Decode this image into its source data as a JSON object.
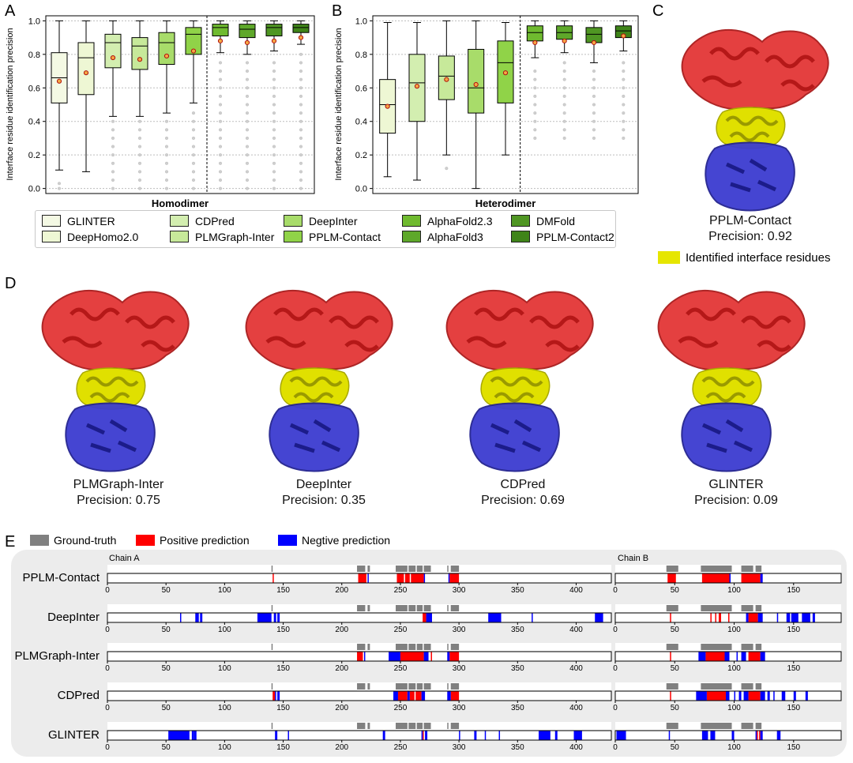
{
  "panel_letters": [
    "A",
    "B",
    "C",
    "D",
    "E"
  ],
  "colors": {
    "GLINTER": "#f4f9e4",
    "DeepHomo2.0": "#eef7d4",
    "CDPred": "#d3eeb0",
    "PLMGraph-Inter": "#c7e99a",
    "DeepInter": "#a8dc6a",
    "PPLM-Contact": "#90d348",
    "AlphaFold2.3": "#6fba2f",
    "AlphaFold3": "#5ea82a",
    "DMFold": "#4f9623",
    "PPLM-Contact2": "#3f8419",
    "ground_truth": "#808080",
    "positive": "#ff0000",
    "negative": "#0000ff",
    "chain_a": "#d42424",
    "chain_b": "#3535c8",
    "interface": "#e6e600"
  },
  "chart_data": [
    {
      "id": "A",
      "type": "box",
      "title": "",
      "xlabel": "Homodimer",
      "ylabel": "Interface residue identification precision",
      "ylim": [
        -0.03,
        1.03
      ],
      "yticks": [
        "0.0",
        "0.2",
        "0.4",
        "0.6",
        "0.8",
        "1.0"
      ],
      "grid": "dotted horizontal",
      "separator_after": 6,
      "boxes": [
        {
          "method": "GLINTER",
          "whislo": 0.11,
          "q1": 0.51,
          "med": 0.66,
          "q3": 0.81,
          "whishi": 1.0,
          "mean": 0.64,
          "fliers": [
            0.0,
            0.03
          ]
        },
        {
          "method": "DeepHomo2.0",
          "whislo": 0.1,
          "q1": 0.56,
          "med": 0.78,
          "q3": 0.87,
          "whishi": 1.0,
          "mean": 0.69,
          "fliers": []
        },
        {
          "method": "CDPred",
          "whislo": 0.43,
          "q1": 0.72,
          "med": 0.87,
          "q3": 0.92,
          "whishi": 1.0,
          "mean": 0.78,
          "fliers": [
            0.0,
            0.05,
            0.1,
            0.15,
            0.2,
            0.25,
            0.3,
            0.35,
            0.4
          ]
        },
        {
          "method": "PLMGraph-Inter",
          "whislo": 0.43,
          "q1": 0.71,
          "med": 0.85,
          "q3": 0.9,
          "whishi": 1.0,
          "mean": 0.77,
          "fliers": [
            0.0,
            0.05,
            0.1,
            0.15,
            0.2,
            0.25,
            0.3,
            0.35,
            0.4
          ]
        },
        {
          "method": "DeepInter",
          "whislo": 0.45,
          "q1": 0.74,
          "med": 0.87,
          "q3": 0.93,
          "whishi": 1.0,
          "mean": 0.79,
          "fliers": [
            0.0,
            0.05,
            0.1,
            0.15,
            0.2,
            0.25,
            0.3,
            0.35,
            0.4
          ]
        },
        {
          "method": "PPLM-Contact",
          "whislo": 0.51,
          "q1": 0.8,
          "med": 0.92,
          "q3": 0.96,
          "whishi": 1.0,
          "mean": 0.82,
          "fliers": [
            0.0,
            0.05,
            0.1,
            0.15,
            0.2,
            0.25,
            0.3,
            0.35,
            0.4,
            0.45
          ]
        },
        {
          "method": "AlphaFold2.3",
          "whislo": 0.81,
          "q1": 0.91,
          "med": 0.96,
          "q3": 0.98,
          "whishi": 1.0,
          "mean": 0.88,
          "fliers": [
            0.0,
            0.05,
            0.1,
            0.15,
            0.2,
            0.25,
            0.3,
            0.35,
            0.4,
            0.45,
            0.5,
            0.55,
            0.6,
            0.65,
            0.7,
            0.75
          ]
        },
        {
          "method": "AlphaFold3",
          "whislo": 0.8,
          "q1": 0.9,
          "med": 0.95,
          "q3": 0.98,
          "whishi": 1.0,
          "mean": 0.87,
          "fliers": [
            0.0,
            0.05,
            0.1,
            0.15,
            0.2,
            0.25,
            0.3,
            0.35,
            0.4,
            0.45,
            0.5,
            0.55,
            0.6,
            0.65,
            0.7,
            0.75
          ]
        },
        {
          "method": "DMFold",
          "whislo": 0.82,
          "q1": 0.91,
          "med": 0.96,
          "q3": 0.98,
          "whishi": 1.0,
          "mean": 0.88,
          "fliers": [
            0.0,
            0.05,
            0.1,
            0.15,
            0.2,
            0.25,
            0.3,
            0.35,
            0.4,
            0.45,
            0.5,
            0.55,
            0.6,
            0.65,
            0.7,
            0.75
          ]
        },
        {
          "method": "PPLM-Contact2",
          "whislo": 0.86,
          "q1": 0.93,
          "med": 0.96,
          "q3": 0.98,
          "whishi": 1.0,
          "mean": 0.9,
          "fliers": [
            0.0,
            0.05,
            0.1,
            0.15,
            0.2,
            0.25,
            0.3,
            0.35,
            0.4,
            0.45,
            0.5,
            0.55,
            0.6,
            0.65,
            0.7,
            0.75,
            0.8
          ]
        }
      ]
    },
    {
      "id": "B",
      "type": "box",
      "title": "",
      "xlabel": "Heterodimer",
      "ylabel": "Interface residue identification precision",
      "ylim": [
        -0.03,
        1.03
      ],
      "yticks": [
        "0.0",
        "0.2",
        "0.4",
        "0.6",
        "0.8",
        "1.0"
      ],
      "grid": "dotted horizontal",
      "separator_after": 5,
      "boxes": [
        {
          "method": "DeepHomo2.0",
          "whislo": 0.07,
          "q1": 0.33,
          "med": 0.5,
          "q3": 0.65,
          "whishi": 0.99,
          "mean": 0.49,
          "fliers": []
        },
        {
          "method": "CDPred",
          "whislo": 0.05,
          "q1": 0.4,
          "med": 0.63,
          "q3": 0.8,
          "whishi": 0.99,
          "mean": 0.61,
          "fliers": []
        },
        {
          "method": "PLMGraph-Inter",
          "whislo": 0.2,
          "q1": 0.53,
          "med": 0.67,
          "q3": 0.79,
          "whishi": 1.0,
          "mean": 0.65,
          "fliers": [
            0.12
          ]
        },
        {
          "method": "DeepInter",
          "whislo": 0.0,
          "q1": 0.45,
          "med": 0.6,
          "q3": 0.83,
          "whishi": 1.0,
          "mean": 0.62,
          "fliers": []
        },
        {
          "method": "PPLM-Contact",
          "whislo": 0.2,
          "q1": 0.51,
          "med": 0.75,
          "q3": 0.88,
          "whishi": 0.99,
          "mean": 0.69,
          "fliers": []
        },
        {
          "method": "AlphaFold2.3",
          "whislo": 0.78,
          "q1": 0.88,
          "med": 0.93,
          "q3": 0.97,
          "whishi": 1.0,
          "mean": 0.87,
          "fliers": [
            0.3,
            0.35,
            0.4,
            0.45,
            0.5,
            0.55,
            0.6,
            0.65,
            0.7
          ]
        },
        {
          "method": "AlphaFold3",
          "whislo": 0.81,
          "q1": 0.89,
          "med": 0.93,
          "q3": 0.97,
          "whishi": 1.0,
          "mean": 0.88,
          "fliers": [
            0.3,
            0.35,
            0.4,
            0.45,
            0.5,
            0.55,
            0.6,
            0.65,
            0.7,
            0.75
          ]
        },
        {
          "method": "DMFold",
          "whislo": 0.75,
          "q1": 0.87,
          "med": 0.92,
          "q3": 0.96,
          "whishi": 1.0,
          "mean": 0.87,
          "fliers": [
            0.3,
            0.35,
            0.4,
            0.45,
            0.5,
            0.55,
            0.6,
            0.65,
            0.7
          ]
        },
        {
          "method": "PPLM-Contact2",
          "whislo": 0.82,
          "q1": 0.9,
          "med": 0.94,
          "q3": 0.97,
          "whishi": 1.0,
          "mean": 0.91,
          "fliers": [
            0.3,
            0.35,
            0.4,
            0.45,
            0.5,
            0.55,
            0.6,
            0.65,
            0.7,
            0.75
          ]
        }
      ]
    },
    {
      "id": "E",
      "type": "residue-track",
      "legend": [
        "Ground-truth",
        "Positive prediction",
        "Negtive prediction"
      ],
      "chain_a": {
        "label": "Chain A",
        "length": 430,
        "ticks": [
          "0",
          "50",
          "100",
          "150",
          "200",
          "250",
          "300",
          "350",
          "400"
        ]
      },
      "chain_b": {
        "label": "Chain B",
        "length": 190,
        "ticks": [
          "0",
          "50",
          "100",
          "150"
        ]
      },
      "ground_truth": {
        "chain_a": [
          [
            140,
            141
          ],
          [
            213,
            220
          ],
          [
            222,
            224
          ],
          [
            246,
            256
          ],
          [
            257,
            263
          ],
          [
            264,
            269
          ],
          [
            270,
            276
          ],
          [
            290,
            291
          ],
          [
            293,
            300
          ]
        ],
        "chain_b": [
          [
            43,
            53
          ],
          [
            72,
            98
          ],
          [
            106,
            116
          ],
          [
            118,
            123
          ]
        ]
      },
      "rows": [
        {
          "method": "PPLM-Contact",
          "a_pos": [
            [
              141,
              142
            ],
            [
              214,
              221
            ],
            [
              247,
              253
            ],
            [
              254,
              258
            ],
            [
              259,
              270
            ],
            [
              292,
              300
            ]
          ],
          "a_neg": [
            [
              222,
              223
            ],
            [
              270,
              271
            ],
            [
              291,
              292
            ]
          ],
          "b_pos": [
            [
              44,
              51
            ],
            [
              73,
              96
            ],
            [
              106,
              122
            ]
          ],
          "b_neg": [
            [
              96,
              97
            ],
            [
              122,
              124
            ]
          ]
        },
        {
          "method": "DeepInter",
          "a_pos": [
            [
              269,
              272
            ]
          ],
          "a_neg": [
            [
              62,
              63
            ],
            [
              75,
              78
            ],
            [
              79,
              80
            ],
            [
              80,
              81
            ],
            [
              128,
              140
            ],
            [
              142,
              144
            ],
            [
              145,
              147
            ],
            [
              272,
              277
            ],
            [
              325,
              336
            ],
            [
              362,
              363
            ],
            [
              416,
              423
            ]
          ],
          "b_pos": [
            [
              46,
              47
            ],
            [
              80,
              81
            ],
            [
              84,
              85
            ],
            [
              87,
              89
            ],
            [
              95,
              96
            ],
            [
              112,
              120
            ]
          ],
          "b_neg": [
            [
              110,
              112
            ],
            [
              120,
              124
            ],
            [
              136,
              137
            ],
            [
              144,
              147
            ],
            [
              148,
              154
            ],
            [
              157,
              164
            ],
            [
              166,
              168
            ]
          ]
        },
        {
          "method": "PLMGraph-Inter",
          "a_pos": [
            [
              213,
              218
            ],
            [
              250,
              270
            ],
            [
              276,
              277
            ],
            [
              292,
              300
            ]
          ],
          "a_neg": [
            [
              219,
              220
            ],
            [
              240,
              250
            ],
            [
              270,
              274
            ],
            [
              290,
              292
            ]
          ],
          "b_pos": [
            [
              46,
              47
            ],
            [
              76,
              92
            ],
            [
              112,
              122
            ]
          ],
          "b_neg": [
            [
              70,
              76
            ],
            [
              92,
              96
            ],
            [
              102,
              103
            ],
            [
              106,
              110
            ],
            [
              122,
              126
            ]
          ]
        },
        {
          "method": "CDPred",
          "a_pos": [
            [
              141,
              143
            ],
            [
              248,
              256
            ],
            [
              258,
              262
            ],
            [
              263,
              268
            ],
            [
              293,
              300
            ]
          ],
          "a_neg": [
            [
              143,
              144
            ],
            [
              145,
              147
            ],
            [
              244,
              248
            ],
            [
              256,
              258
            ],
            [
              268,
              271
            ],
            [
              290,
              293
            ]
          ],
          "b_pos": [
            [
              46,
              47
            ],
            [
              77,
              93
            ],
            [
              112,
              122
            ]
          ],
          "b_neg": [
            [
              68,
              77
            ],
            [
              93,
              96
            ],
            [
              100,
              101
            ],
            [
              104,
              106
            ],
            [
              108,
              112
            ],
            [
              122,
              126
            ],
            [
              128,
              130
            ],
            [
              133,
              134
            ],
            [
              140,
              143
            ],
            [
              150,
              152
            ],
            [
              160,
              162
            ]
          ]
        },
        {
          "method": "GLINTER",
          "a_pos": [
            [
              269,
              270
            ]
          ],
          "a_neg": [
            [
              52,
              70
            ],
            [
              72,
              74
            ],
            [
              74,
              76
            ],
            [
              143,
              145
            ],
            [
              154,
              155
            ],
            [
              235,
              237
            ],
            [
              268,
              269
            ],
            [
              271,
              273
            ],
            [
              300,
              301
            ],
            [
              313,
              315
            ],
            [
              322,
              323
            ],
            [
              334,
              335
            ],
            [
              368,
              378
            ],
            [
              382,
              384
            ],
            [
              398,
              405
            ]
          ],
          "b_pos": [
            [
              119,
              120
            ],
            [
              121,
              122
            ]
          ],
          "b_neg": [
            [
              1,
              9
            ],
            [
              45,
              46
            ],
            [
              73,
              78
            ],
            [
              80,
              84
            ],
            [
              98,
              100
            ],
            [
              118,
              119
            ],
            [
              122,
              124
            ],
            [
              136,
              139
            ]
          ]
        }
      ]
    }
  ],
  "legend_a": [
    "GLINTER",
    "DeepHomo2.0",
    "CDPred",
    "PLMGraph-Inter",
    "DeepInter",
    "PPLM-Contact",
    "AlphaFold2.3",
    "AlphaFold3",
    "DMFold",
    "PPLM-Contact2"
  ],
  "panel_c": {
    "method": "PPLM-Contact",
    "precision": "Precision: 0.92",
    "legend": "Identified interface residues"
  },
  "panel_d": [
    {
      "method": "PLMGraph-Inter",
      "precision": "Precision: 0.75"
    },
    {
      "method": "DeepInter",
      "precision": "Precision: 0.35"
    },
    {
      "method": "CDPred",
      "precision": "Precision: 0.69"
    },
    {
      "method": "GLINTER",
      "precision": "Precision: 0.09"
    }
  ]
}
